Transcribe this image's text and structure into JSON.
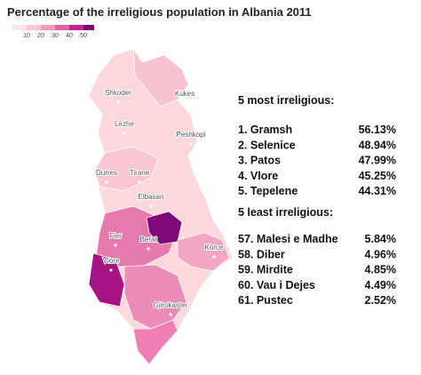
{
  "title": "Percentage of the irreligious population in Albania 2011",
  "legend": {
    "ticks": [
      10,
      20,
      30,
      40,
      50
    ]
  },
  "cities": [
    "Shkoder",
    "Kukes",
    "Lezhe",
    "Peshkopi",
    "Durres",
    "Tirane",
    "Elbasan",
    "Fier",
    "Berat",
    "Korce",
    "Vlore",
    "Gjirokaster"
  ],
  "most": {
    "heading": "5 most irreligious:",
    "rows": [
      [
        "1. Gramsh",
        "56.13%"
      ],
      [
        "2. Selenice",
        "48.94%"
      ],
      [
        "3. Patos",
        "47.99%"
      ],
      [
        "4. Vlore",
        "45.25%"
      ],
      [
        "5. Tepelene",
        "44.31%"
      ]
    ]
  },
  "least": {
    "heading": "5 least irreligious:",
    "rows": [
      [
        "57. Malesi e Madhe",
        "5.84%"
      ],
      [
        "58. Diber",
        "4.96%"
      ],
      [
        "59. Mirdite",
        "4.85%"
      ],
      [
        "60. Vau i Dejes",
        "4.49%"
      ],
      [
        "61. Pustec",
        "2.52%"
      ]
    ]
  }
}
